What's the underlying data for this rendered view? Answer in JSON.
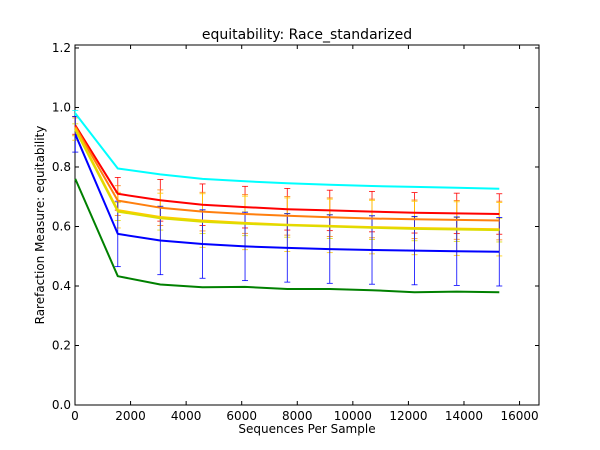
{
  "chart_data": {
    "type": "line",
    "title": "equitability: Race_standarized",
    "xlabel": "Sequences Per Sample",
    "ylabel": "Rarefaction Measure: equitability",
    "xlim": [
      0,
      16700
    ],
    "ylim": [
      0,
      1.21
    ],
    "xticks": [
      0,
      2000,
      4000,
      6000,
      8000,
      10000,
      12000,
      14000,
      16000
    ],
    "yticks": [
      0.0,
      0.2,
      0.4,
      0.6,
      0.8,
      1.0,
      1.2
    ],
    "xtick_labels": [
      "0",
      "2000",
      "4000",
      "6000",
      "8000",
      "10000",
      "12000",
      "14000",
      "16000"
    ],
    "ytick_labels": [
      "0.0",
      "0.2",
      "0.4",
      "0.6",
      "0.8",
      "1.0",
      "1.2"
    ],
    "grid": false,
    "x": [
      10,
      1540,
      3070,
      4590,
      6120,
      7640,
      9170,
      10690,
      12220,
      13740,
      15270
    ],
    "series": [
      {
        "color": "#00ffff",
        "values": [
          0.98,
          0.795,
          0.775,
          0.76,
          0.752,
          0.745,
          0.74,
          0.736,
          0.733,
          0.73,
          0.727
        ],
        "err": [
          0.01,
          0.0,
          0.0,
          0.0,
          0.0,
          0.0,
          0.0,
          0.0,
          0.0,
          0.0,
          0.0
        ]
      },
      {
        "color": "#ff0000",
        "values": [
          0.94,
          0.71,
          0.688,
          0.673,
          0.665,
          0.658,
          0.654,
          0.65,
          0.646,
          0.644,
          0.642
        ],
        "err": [
          0.03,
          0.055,
          0.07,
          0.07,
          0.07,
          0.07,
          0.068,
          0.068,
          0.068,
          0.068,
          0.068
        ]
      },
      {
        "color": "#ff7f0e",
        "values": [
          0.935,
          0.687,
          0.663,
          0.65,
          0.642,
          0.636,
          0.631,
          0.627,
          0.624,
          0.622,
          0.62
        ],
        "err": [
          0.03,
          0.05,
          0.06,
          0.065,
          0.065,
          0.065,
          0.065,
          0.065,
          0.065,
          0.065,
          0.065
        ]
      },
      {
        "color": "#ffcc00",
        "values": [
          0.93,
          0.655,
          0.632,
          0.62,
          0.612,
          0.606,
          0.602,
          0.598,
          0.595,
          0.593,
          0.591
        ],
        "err": [
          0.04,
          0.06,
          0.08,
          0.09,
          0.09,
          0.09,
          0.09,
          0.09,
          0.09,
          0.09,
          0.09
        ]
      },
      {
        "color": "#dddd00",
        "values": [
          0.925,
          0.65,
          0.628,
          0.616,
          0.609,
          0.604,
          0.6,
          0.596,
          0.592,
          0.59,
          0.588
        ],
        "err": [
          0.02,
          0.03,
          0.04,
          0.04,
          0.04,
          0.04,
          0.04,
          0.04,
          0.04,
          0.04,
          0.04
        ]
      },
      {
        "color": "#0000ff",
        "values": [
          0.91,
          0.575,
          0.553,
          0.541,
          0.533,
          0.528,
          0.524,
          0.521,
          0.519,
          0.517,
          0.515
        ],
        "err": [
          0.06,
          0.11,
          0.115,
          0.115,
          0.115,
          0.115,
          0.115,
          0.115,
          0.115,
          0.115,
          0.115
        ]
      },
      {
        "color": "#008000",
        "values": [
          0.76,
          0.433,
          0.405,
          0.396,
          0.397,
          0.39,
          0.39,
          0.386,
          0.379,
          0.381,
          0.379
        ],
        "err": [
          0.0,
          0.0,
          0.0,
          0.0,
          0.0,
          0.0,
          0.0,
          0.0,
          0.0,
          0.0,
          0.0
        ]
      }
    ]
  }
}
